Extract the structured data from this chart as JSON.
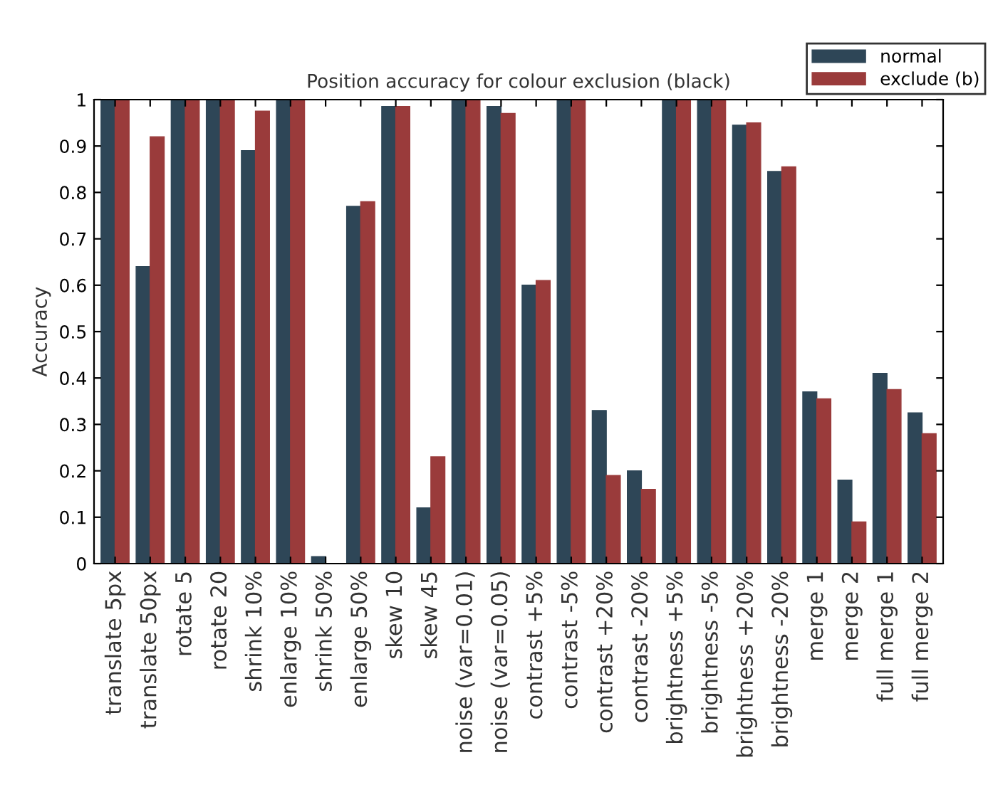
{
  "chart_data": {
    "type": "bar",
    "title": "Position accuracy for colour exclusion (black)",
    "ylabel": "Accuracy",
    "categories": [
      "translate 5px",
      "translate 50px",
      "rotate 5",
      "rotate 20",
      "shrink 10%",
      "enlarge 10%",
      "shrink 50%",
      "enlarge 50%",
      "skew 10",
      "skew 45",
      "noise (var=0.01)",
      "noise (var=0.05)",
      "contrast +5%",
      "contrast -5%",
      "contrast +20%",
      "contrast -20%",
      "brightness +5%",
      "brightness -5%",
      "brightness +20%",
      "brightness -20%",
      "merge 1",
      "merge 2",
      "full merge 1",
      "full merge 2"
    ],
    "series": [
      {
        "name": "normal",
        "color": "#2e4657",
        "values": [
          1,
          0.64,
          1,
          1,
          0.89,
          1,
          0.015,
          0.77,
          0.985,
          0.12,
          1,
          0.985,
          0.6,
          1,
          0.33,
          0.2,
          1,
          1,
          0.945,
          0.845,
          0.37,
          0.18,
          0.41,
          0.325
        ]
      },
      {
        "name": "exclude (b)",
        "color": "#9a3b3b",
        "values": [
          1,
          0.92,
          1,
          1,
          0.975,
          1,
          0,
          0.78,
          0.985,
          0.23,
          1,
          0.97,
          0.61,
          1,
          0.19,
          0.16,
          1,
          1,
          0.95,
          0.855,
          0.355,
          0.09,
          0.375,
          0.28
        ]
      }
    ],
    "ylim": [
      0,
      1
    ],
    "yticks": [
      0,
      0.1,
      0.2,
      0.3,
      0.4,
      0.5,
      0.6,
      0.7,
      0.8,
      0.9,
      1
    ],
    "grid": false,
    "legend": "top right"
  }
}
